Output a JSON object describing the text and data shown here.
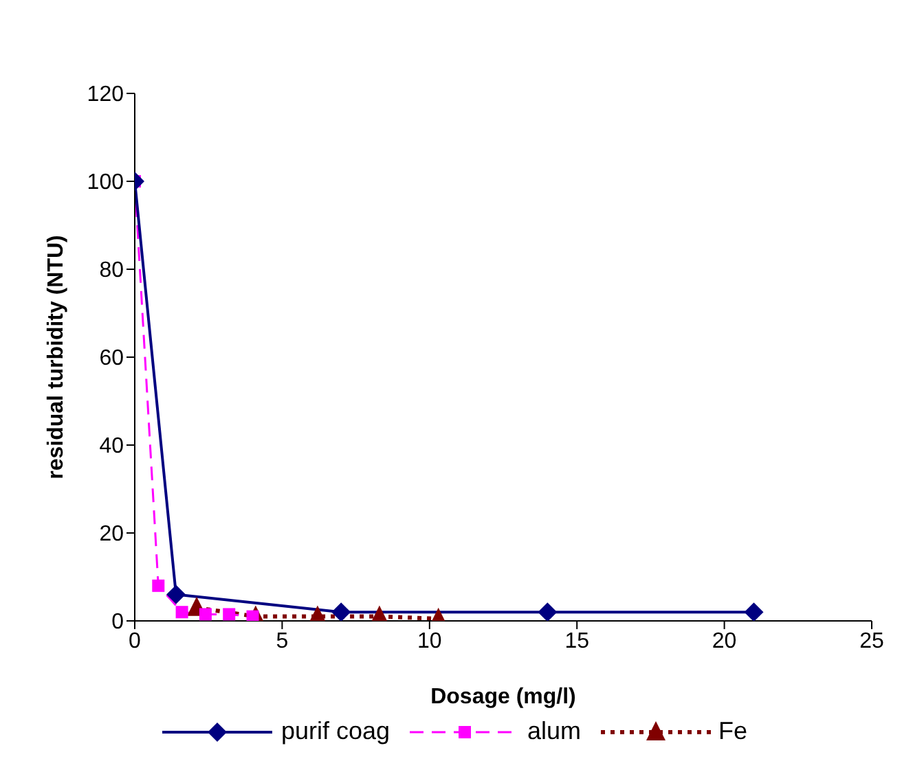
{
  "chart_data": {
    "type": "line",
    "xlabel": "Dosage (mg/l)",
    "ylabel": "residual turbidity (NTU)",
    "xlim": [
      0,
      25
    ],
    "xticks": [
      0,
      5,
      10,
      15,
      20,
      25
    ],
    "ylim": [
      0,
      120
    ],
    "yticks": [
      0,
      20,
      40,
      60,
      80,
      100,
      120
    ],
    "grid": false,
    "legend": "bottom",
    "series": [
      {
        "name": "purif coag",
        "color": "#000080",
        "marker": "diamond",
        "line_style": "solid",
        "x": [
          0,
          1.4,
          7,
          14,
          21
        ],
        "values": [
          100,
          6,
          2,
          2,
          2
        ]
      },
      {
        "name": "alum",
        "color": "#ff00ff",
        "marker": "square",
        "line_style": "dashed",
        "x": [
          0,
          0.8,
          1.6,
          2.4,
          3.2,
          4.0
        ],
        "values": [
          100,
          8,
          2,
          1.5,
          1.5,
          1
        ]
      },
      {
        "name": "Fe",
        "color": "#800000",
        "marker": "triangle",
        "line_style": "dotted",
        "x": [
          2.1,
          4.1,
          6.2,
          8.3,
          10.3
        ],
        "values": [
          3,
          1,
          1,
          1,
          0.5
        ]
      }
    ]
  }
}
